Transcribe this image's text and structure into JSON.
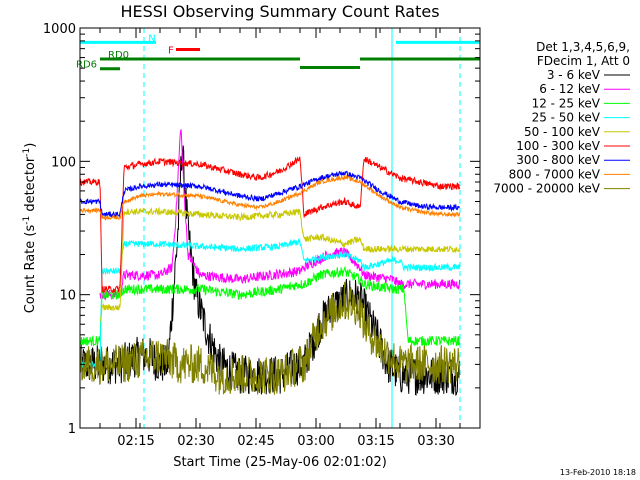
{
  "chart_data": {
    "type": "line",
    "title": "HESSI Observing Summary Count Rates",
    "xlabel": "Start Time (25-May-06 02:01:02)",
    "ylabel_main": "Count Rate (s",
    "ylabel_sup1": "-1",
    "ylabel_mid": " detector",
    "ylabel_sup2": "-1",
    "ylabel_end": ")",
    "ylabel": "Count Rate (s-1 detector-1)",
    "yscale": "log",
    "ylim": [
      1,
      1000
    ],
    "xlim_minutes": [
      0,
      100
    ],
    "xticks": [
      {
        "minute": 14,
        "label": "02:15"
      },
      {
        "minute": 29,
        "label": "02:30"
      },
      {
        "minute": 44,
        "label": "02:45"
      },
      {
        "minute": 59,
        "label": "03:00"
      },
      {
        "minute": 74,
        "label": "03:15"
      },
      {
        "minute": 89,
        "label": "03:30"
      }
    ],
    "yticks": [
      {
        "value": 1,
        "label": "1"
      },
      {
        "value": 10,
        "label": "10"
      },
      {
        "value": 100,
        "label": "100"
      },
      {
        "value": 1000,
        "label": "1000"
      }
    ],
    "legend_header": [
      "Det 1,3,4,5,6,9,",
      "FDecim 1, Att 0"
    ],
    "legend_position": "right",
    "footer_date": "13-Feb-2010 18:18",
    "vlines": [
      {
        "minute": 0,
        "style": "solid",
        "color": "#00ffff"
      },
      {
        "minute": 16,
        "style": "dashed",
        "color": "#00ffff"
      },
      {
        "minute": 78,
        "style": "solid",
        "color": "#00ffff"
      },
      {
        "minute": 95,
        "style": "dashed",
        "color": "#00ffff"
      }
    ],
    "flag_bars": [
      {
        "label": "N",
        "color": "#00ffff",
        "value": 780,
        "segments": [
          [
            0,
            19
          ],
          [
            79,
            100
          ]
        ]
      },
      {
        "label": "F",
        "color": "#ff0000",
        "value": 690,
        "segments": [
          [
            24,
            30
          ]
        ]
      },
      {
        "label": "RD0",
        "color": "#008000",
        "value": 585,
        "segments": [
          [
            5,
            55
          ],
          [
            70,
            100
          ]
        ]
      },
      {
        "label": "",
        "color": "#008000",
        "value": 505,
        "segments": [
          [
            55,
            70
          ]
        ]
      },
      {
        "label": "RD6",
        "color": "#008000",
        "value": 495,
        "segments": [
          [
            5,
            10
          ]
        ]
      }
    ],
    "series": [
      {
        "name": "3 - 6 keV",
        "color": "#000000",
        "noise": 0.6,
        "x": [
          0,
          10,
          15,
          17,
          20,
          22,
          24.5,
          25.5,
          27,
          29,
          32,
          35,
          40,
          50,
          55,
          56,
          60,
          63,
          66,
          68,
          70,
          71,
          74,
          77,
          80,
          85,
          90,
          95
        ],
        "y": [
          3,
          3,
          3.5,
          3.5,
          3,
          3,
          30,
          130,
          30,
          10,
          5,
          3,
          2.5,
          2.5,
          3,
          3,
          6,
          8,
          9,
          10,
          9,
          8,
          5,
          3,
          2.5,
          2.5,
          2.5,
          2.5
        ]
      },
      {
        "name": "6 - 12 keV",
        "color": "#ff00ff",
        "noise": 0.15,
        "x": [
          5,
          10,
          11,
          15,
          20,
          23,
          24,
          25.2,
          26,
          27,
          30,
          40,
          55,
          56,
          62,
          66,
          70,
          71,
          78,
          80,
          95
        ],
        "y": [
          10,
          10,
          14,
          14,
          14,
          16,
          40,
          190,
          60,
          20,
          14,
          13,
          15,
          16,
          20,
          21,
          16,
          14,
          13,
          12,
          12
        ]
      },
      {
        "name": "12 - 25 keV",
        "color": "#00ff00",
        "noise": 0.15,
        "x": [
          0,
          5,
          5.5,
          10,
          11,
          16,
          20,
          30,
          40,
          50,
          55,
          56,
          60,
          66,
          70,
          71,
          78,
          81,
          82,
          95
        ],
        "y": [
          4.5,
          4.5,
          10,
          10,
          11,
          11,
          11,
          11,
          10,
          11,
          12,
          12,
          14,
          15,
          13,
          12,
          11,
          11,
          4.5,
          4.5
        ]
      },
      {
        "name": "25 - 50 keV",
        "color": "#00ffff",
        "noise": 0.1,
        "x": [
          0,
          5,
          5.5,
          10,
          11,
          20,
          30,
          40,
          50,
          55,
          56,
          60,
          66,
          70,
          71,
          78,
          80,
          81,
          95
        ],
        "y": [
          3,
          3,
          15,
          15,
          24,
          24,
          23,
          22,
          23,
          25,
          18,
          19,
          20,
          18,
          16,
          18,
          18,
          16,
          16
        ]
      },
      {
        "name": "50 - 100 keV",
        "color": "#c8c800",
        "noise": 0.1,
        "x": [
          5,
          5.5,
          10,
          11,
          20,
          30,
          40,
          50,
          55,
          56,
          60,
          66,
          70,
          71,
          78,
          80,
          95
        ],
        "y": [
          6,
          8,
          8,
          42,
          42,
          40,
          38,
          40,
          42,
          26,
          27,
          24,
          26,
          22,
          22,
          22,
          22
        ]
      },
      {
        "name": "100 - 300 keV",
        "color": "#ff0000",
        "noise": 0.1,
        "x": [
          0,
          5,
          5.5,
          10,
          11,
          15,
          20,
          30,
          40,
          45,
          50,
          55,
          56,
          60,
          66,
          70,
          71,
          75,
          80,
          90,
          95
        ],
        "y": [
          70,
          70,
          11,
          11,
          90,
          95,
          100,
          95,
          80,
          75,
          85,
          105,
          40,
          45,
          50,
          45,
          105,
          90,
          75,
          65,
          65
        ]
      },
      {
        "name": "300 - 800 keV",
        "color": "#0000ff",
        "noise": 0.08,
        "x": [
          0,
          5,
          5.5,
          10,
          11,
          15,
          20,
          30,
          40,
          45,
          50,
          55,
          60,
          66,
          70,
          75,
          80,
          85,
          90,
          95
        ],
        "y": [
          50,
          50,
          40,
          40,
          60,
          65,
          67,
          65,
          55,
          52,
          58,
          65,
          75,
          82,
          75,
          60,
          50,
          46,
          45,
          45
        ]
      },
      {
        "name": "800 - 7000 keV",
        "color": "#ff8000",
        "noise": 0.06,
        "x": [
          0,
          5,
          5.5,
          10,
          11,
          15,
          20,
          30,
          40,
          45,
          50,
          55,
          60,
          66,
          70,
          75,
          80,
          85,
          90,
          95
        ],
        "y": [
          43,
          43,
          38,
          38,
          50,
          55,
          57,
          55,
          47,
          45,
          50,
          58,
          70,
          76,
          70,
          55,
          45,
          42,
          40,
          40
        ]
      },
      {
        "name": "7000 - 20000 keV",
        "color": "#808000",
        "noise": 0.6,
        "x": [
          0,
          10,
          20,
          25,
          30,
          35,
          40,
          45,
          50,
          55,
          56,
          60,
          66,
          70,
          71,
          75,
          80,
          85,
          90,
          95
        ],
        "y": [
          3,
          3,
          3.5,
          3,
          3,
          2.5,
          2.5,
          2.5,
          2.5,
          3,
          3,
          6,
          9,
          8,
          6,
          4,
          3,
          3,
          3,
          3
        ]
      }
    ]
  }
}
